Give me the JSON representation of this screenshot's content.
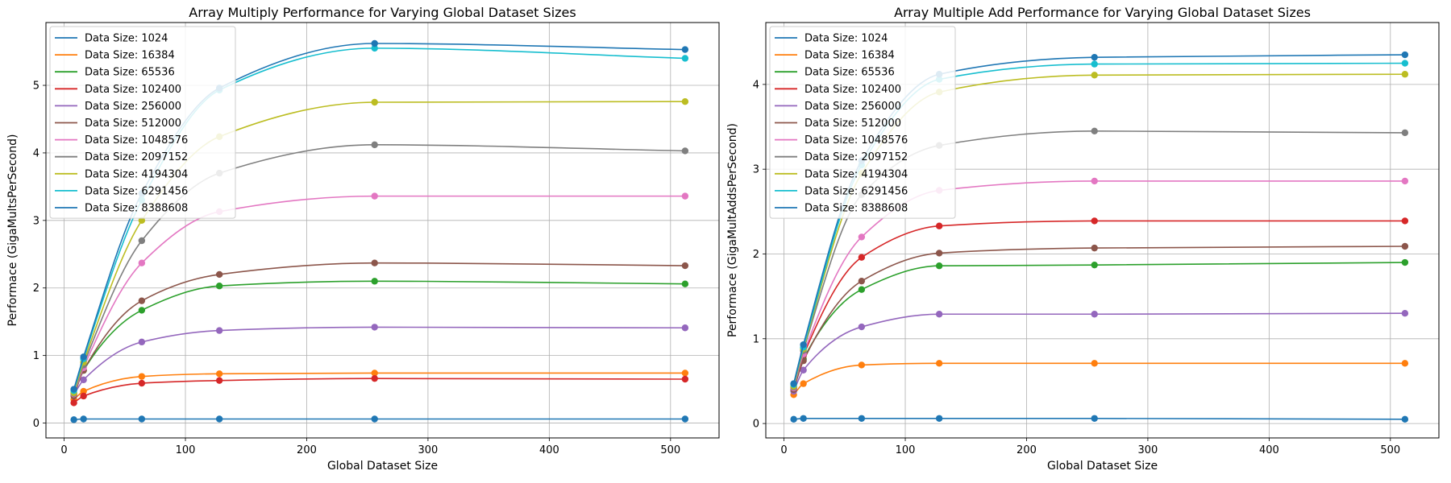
{
  "chart_data": [
    {
      "type": "line",
      "title": "Array Multiply Performance for Varying Global Dataset Sizes",
      "xlabel": "Global Dataset Size",
      "ylabel": "Performace (GigaMultsPerSecond)",
      "x": [
        8,
        16,
        64,
        128,
        256,
        512
      ],
      "xlim": [
        -15,
        540
      ],
      "ylim": [
        -0.22,
        5.93
      ],
      "xticks": [
        0,
        100,
        200,
        300,
        400,
        500
      ],
      "yticks": [
        0,
        1,
        2,
        3,
        4,
        5
      ],
      "grid": true,
      "legend_position": "top-left",
      "series": [
        {
          "name": "Data Size: 1024",
          "color": "#1f77b4",
          "values": [
            0.05,
            0.06,
            0.06,
            0.06,
            0.06,
            0.06
          ]
        },
        {
          "name": "Data Size: 16384",
          "color": "#ff7f0e",
          "values": [
            0.35,
            0.47,
            0.69,
            0.73,
            0.74,
            0.74
          ]
        },
        {
          "name": "Data Size: 65536",
          "color": "#2ca02c",
          "values": [
            0.42,
            0.78,
            1.67,
            2.03,
            2.1,
            2.06
          ]
        },
        {
          "name": "Data Size: 102400",
          "color": "#d62728",
          "values": [
            0.3,
            0.4,
            0.59,
            0.63,
            0.66,
            0.65
          ]
        },
        {
          "name": "Data Size: 256000",
          "color": "#9467bd",
          "values": [
            0.42,
            0.64,
            1.2,
            1.37,
            1.42,
            1.41
          ]
        },
        {
          "name": "Data Size: 512000",
          "color": "#8c564b",
          "values": [
            0.4,
            0.78,
            1.81,
            2.2,
            2.37,
            2.33
          ]
        },
        {
          "name": "Data Size: 1048576",
          "color": "#e377c2",
          "values": [
            0.43,
            0.82,
            2.37,
            3.13,
            3.36,
            3.36
          ]
        },
        {
          "name": "Data Size: 2097152",
          "color": "#7f7f7f",
          "values": [
            0.44,
            0.86,
            2.7,
            3.7,
            4.12,
            4.03
          ]
        },
        {
          "name": "Data Size: 4194304",
          "color": "#bcbd22",
          "values": [
            0.45,
            0.9,
            3.0,
            4.24,
            4.75,
            4.76
          ]
        },
        {
          "name": "Data Size: 6291456",
          "color": "#17becf",
          "values": [
            0.48,
            0.95,
            3.3,
            4.93,
            5.55,
            5.4
          ]
        },
        {
          "name": "Data Size: 8388608",
          "color": "#1f77b4",
          "values": [
            0.5,
            0.98,
            3.4,
            4.96,
            5.62,
            5.53
          ]
        }
      ]
    },
    {
      "type": "line",
      "title": "Array Multiple Add Performance for Varying Global Dataset Sizes",
      "xlabel": "Global Dataset Size",
      "ylabel": "Performace (GigaMultAddsPerSecond)",
      "x": [
        8,
        16,
        64,
        128,
        256,
        512
      ],
      "xlim": [
        -15,
        540
      ],
      "ylim": [
        -0.17,
        4.73
      ],
      "xticks": [
        0,
        100,
        200,
        300,
        400,
        500
      ],
      "yticks": [
        0,
        1,
        2,
        3,
        4
      ],
      "grid": true,
      "legend_position": "top-left",
      "series": [
        {
          "name": "Data Size: 1024",
          "color": "#1f77b4",
          "values": [
            0.05,
            0.06,
            0.06,
            0.06,
            0.06,
            0.05
          ]
        },
        {
          "name": "Data Size: 16384",
          "color": "#ff7f0e",
          "values": [
            0.34,
            0.47,
            0.69,
            0.71,
            0.71,
            0.71
          ]
        },
        {
          "name": "Data Size: 65536",
          "color": "#2ca02c",
          "values": [
            0.4,
            0.76,
            1.58,
            1.86,
            1.87,
            1.9
          ]
        },
        {
          "name": "Data Size: 102400",
          "color": "#d62728",
          "values": [
            0.42,
            0.8,
            1.96,
            2.33,
            2.39,
            2.39
          ]
        },
        {
          "name": "Data Size: 256000",
          "color": "#9467bd",
          "values": [
            0.38,
            0.63,
            1.14,
            1.29,
            1.29,
            1.3
          ]
        },
        {
          "name": "Data Size: 512000",
          "color": "#8c564b",
          "values": [
            0.4,
            0.74,
            1.68,
            2.01,
            2.07,
            2.09
          ]
        },
        {
          "name": "Data Size: 1048576",
          "color": "#e377c2",
          "values": [
            0.42,
            0.82,
            2.2,
            2.75,
            2.86,
            2.86
          ]
        },
        {
          "name": "Data Size: 2097152",
          "color": "#7f7f7f",
          "values": [
            0.43,
            0.86,
            2.7,
            3.28,
            3.45,
            3.43
          ]
        },
        {
          "name": "Data Size: 4194304",
          "color": "#bcbd22",
          "values": [
            0.44,
            0.88,
            2.95,
            3.91,
            4.11,
            4.12
          ]
        },
        {
          "name": "Data Size: 6291456",
          "color": "#17becf",
          "values": [
            0.46,
            0.9,
            3.05,
            4.06,
            4.24,
            4.25
          ]
        },
        {
          "name": "Data Size: 8388608",
          "color": "#1f77b4",
          "values": [
            0.47,
            0.93,
            3.1,
            4.12,
            4.32,
            4.35
          ]
        }
      ]
    }
  ]
}
